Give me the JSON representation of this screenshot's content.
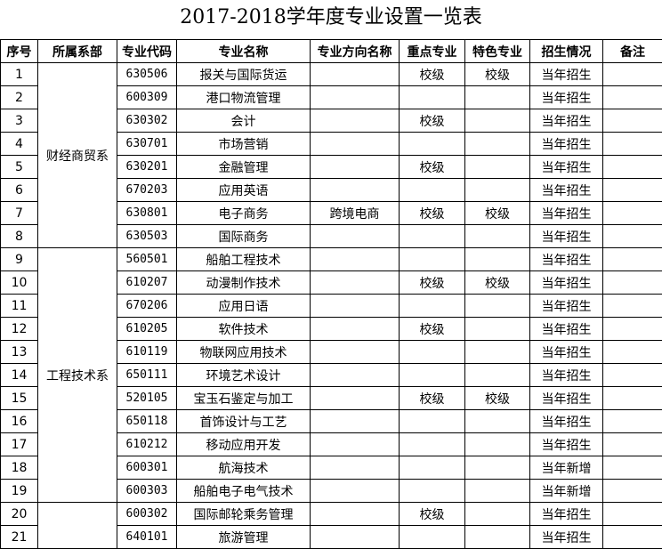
{
  "title": "2017-2018学年度专业设置一览表",
  "headers": [
    "序号",
    "所属系部",
    "专业代码",
    "专业名称",
    "专业方向名称",
    "重点专业",
    "特色专业",
    "招生情况",
    "备注"
  ],
  "departments": [
    {
      "name": "财经商贸系",
      "rows": 8
    },
    {
      "name": "工程技术系",
      "rows": 11
    },
    {
      "name": "",
      "rows": 2
    }
  ],
  "rows": [
    {
      "no": "1",
      "code": "630506",
      "name": "报关与国际货运",
      "direction": "",
      "key": "校级",
      "feature": "校级",
      "status": "当年招生",
      "note": ""
    },
    {
      "no": "2",
      "code": "600309",
      "name": "港口物流管理",
      "direction": "",
      "key": "",
      "feature": "",
      "status": "当年招生",
      "note": ""
    },
    {
      "no": "3",
      "code": "630302",
      "name": "会计",
      "direction": "",
      "key": "校级",
      "feature": "",
      "status": "当年招生",
      "note": ""
    },
    {
      "no": "4",
      "code": "630701",
      "name": "市场营销",
      "direction": "",
      "key": "",
      "feature": "",
      "status": "当年招生",
      "note": ""
    },
    {
      "no": "5",
      "code": "630201",
      "name": "金融管理",
      "direction": "",
      "key": "校级",
      "feature": "",
      "status": "当年招生",
      "note": ""
    },
    {
      "no": "6",
      "code": "670203",
      "name": "应用英语",
      "direction": "",
      "key": "",
      "feature": "",
      "status": "当年招生",
      "note": ""
    },
    {
      "no": "7",
      "code": "630801",
      "name": "电子商务",
      "direction": "跨境电商",
      "key": "校级",
      "feature": "校级",
      "status": "当年招生",
      "note": ""
    },
    {
      "no": "8",
      "code": "630503",
      "name": "国际商务",
      "direction": "",
      "key": "",
      "feature": "",
      "status": "当年招生",
      "note": ""
    },
    {
      "no": "9",
      "code": "560501",
      "name": "船舶工程技术",
      "direction": "",
      "key": "",
      "feature": "",
      "status": "当年招生",
      "note": ""
    },
    {
      "no": "10",
      "code": "610207",
      "name": "动漫制作技术",
      "direction": "",
      "key": "校级",
      "feature": "校级",
      "status": "当年招生",
      "note": ""
    },
    {
      "no": "11",
      "code": "670206",
      "name": "应用日语",
      "direction": "",
      "key": "",
      "feature": "",
      "status": "当年招生",
      "note": ""
    },
    {
      "no": "12",
      "code": "610205",
      "name": "软件技术",
      "direction": "",
      "key": "校级",
      "feature": "",
      "status": "当年招生",
      "note": ""
    },
    {
      "no": "13",
      "code": "610119",
      "name": "物联网应用技术",
      "direction": "",
      "key": "",
      "feature": "",
      "status": "当年招生",
      "note": ""
    },
    {
      "no": "14",
      "code": "650111",
      "name": "环境艺术设计",
      "direction": "",
      "key": "",
      "feature": "",
      "status": "当年招生",
      "note": ""
    },
    {
      "no": "15",
      "code": "520105",
      "name": "宝玉石鉴定与加工",
      "direction": "",
      "key": "校级",
      "feature": "校级",
      "status": "当年招生",
      "note": ""
    },
    {
      "no": "16",
      "code": "650118",
      "name": "首饰设计与工艺",
      "direction": "",
      "key": "",
      "feature": "",
      "status": "当年招生",
      "note": ""
    },
    {
      "no": "17",
      "code": "610212",
      "name": "移动应用开发",
      "direction": "",
      "key": "",
      "feature": "",
      "status": "当年招生",
      "note": ""
    },
    {
      "no": "18",
      "code": "600301",
      "name": "航海技术",
      "direction": "",
      "key": "",
      "feature": "",
      "status": "当年新增",
      "note": ""
    },
    {
      "no": "19",
      "code": "600303",
      "name": "船舶电子电气技术",
      "direction": "",
      "key": "",
      "feature": "",
      "status": "当年新增",
      "note": ""
    },
    {
      "no": "20",
      "code": "600302",
      "name": "国际邮轮乘务管理",
      "direction": "",
      "key": "校级",
      "feature": "",
      "status": "当年招生",
      "note": ""
    },
    {
      "no": "21",
      "code": "640101",
      "name": "旅游管理",
      "direction": "",
      "key": "",
      "feature": "",
      "status": "当年招生",
      "note": ""
    }
  ]
}
